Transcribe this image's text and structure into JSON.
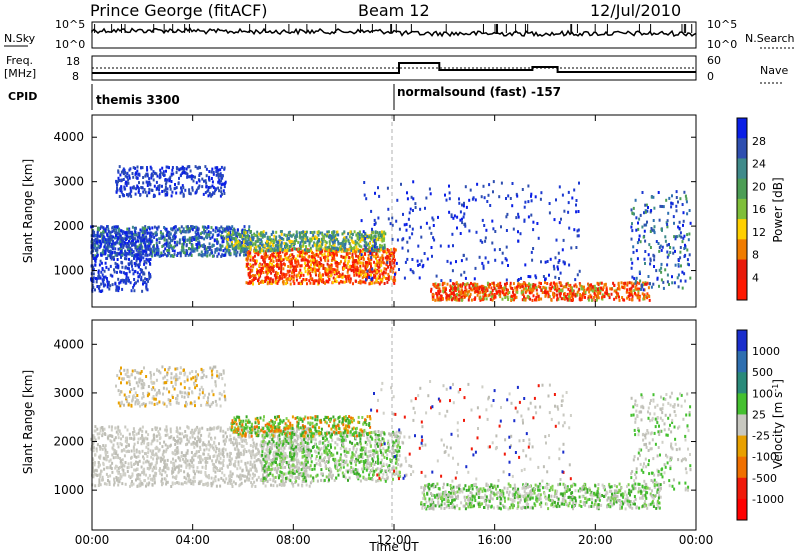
{
  "header": {
    "station": "Prince George (fitACF)",
    "beam": "Beam 12",
    "date": "12/Jul/2010"
  },
  "noise_panel": {
    "left_label": "N.Sky",
    "right_label": "N.Search",
    "left_ticks": [
      "10^5",
      "10^0"
    ],
    "right_ticks": [
      "10^5",
      "10^0"
    ]
  },
  "freq_panel": {
    "left_label_1": "Freq.",
    "left_label_2": "[MHz]",
    "right_label": "Nave",
    "left_ticks": [
      "18",
      "8"
    ],
    "right_ticks": [
      "60",
      "0"
    ]
  },
  "cpid_panel": {
    "label": "CPID",
    "programs": [
      {
        "name": "themis 3300",
        "start_hour": 0
      },
      {
        "name": "normalsound (fast) -157",
        "start_hour": 12
      }
    ]
  },
  "chart_data": [
    {
      "type": "heatmap",
      "name": "power",
      "ylabel": "Slant Range [km]",
      "ylim": [
        180,
        4500
      ],
      "yticks": [
        "4000",
        "3000",
        "2000",
        "1000"
      ],
      "xlim_hours": [
        0,
        24
      ],
      "colorbar_label": "Power [dB]",
      "colorbar_ticks": [
        "28",
        "24",
        "20",
        "16",
        "12",
        "8",
        "4"
      ],
      "colorbar_colors": [
        "#0a1fe6",
        "#2f4fb0",
        "#3f8a8a",
        "#4c9d55",
        "#7fbf3a",
        "#ffd000",
        "#f07c00",
        "#e81a0a",
        "#ff1800"
      ]
    },
    {
      "type": "heatmap",
      "name": "velocity",
      "ylabel": "Slant Range [km]",
      "ylim": [
        180,
        4500
      ],
      "yticks": [
        "4000",
        "3000",
        "2000",
        "1000"
      ],
      "xlim_hours": [
        0,
        24
      ],
      "colorbar_label": "Velocity [m s^-1]",
      "colorbar_ticks": [
        "1000",
        "500",
        "100",
        "25",
        "-25",
        "-100",
        "-500",
        "-1000"
      ],
      "colorbar_colors": [
        "#1a2ecc",
        "#2f6fb0",
        "#2a8a7a",
        "#45c030",
        "#c8c8c0",
        "#e8a000",
        "#f07000",
        "#f01a0a",
        "#ff0000"
      ]
    }
  ],
  "x_axis": {
    "ticks": [
      "00:00",
      "04:00",
      "08:00",
      "12:00",
      "16:00",
      "20:00",
      "00:00"
    ],
    "label": "Time UT"
  }
}
